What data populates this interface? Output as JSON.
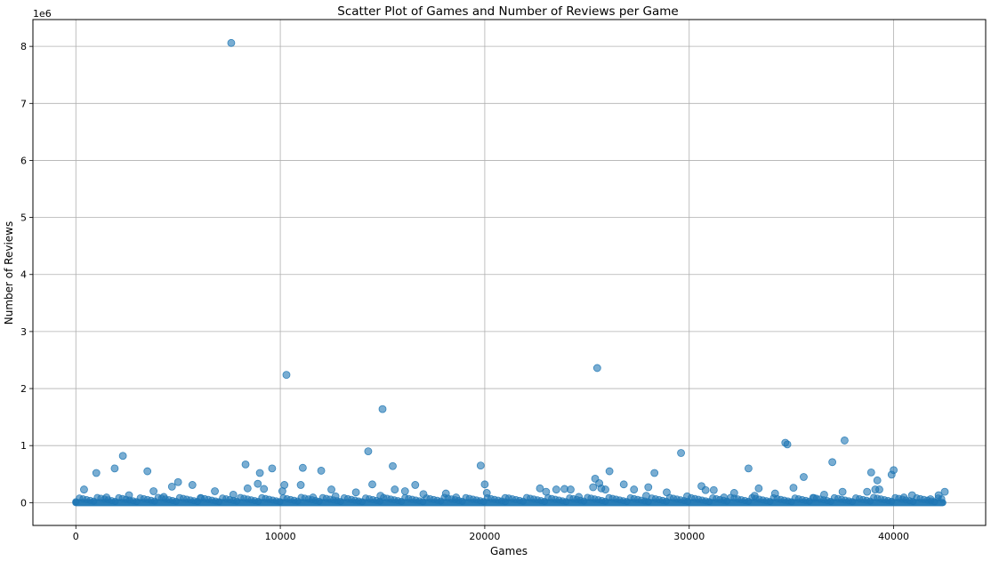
{
  "chart_data": {
    "type": "scatter",
    "title": "Scatter Plot of Games and Number of Reviews per Game",
    "xlabel": "Games",
    "ylabel": "Number of Reviews",
    "y_offset_label": "1e6",
    "xlim": [
      -2100,
      44500
    ],
    "ylim": [
      -400000,
      8470000
    ],
    "x_ticks": [
      0,
      10000,
      20000,
      30000,
      40000
    ],
    "x_tick_labels": [
      "0",
      "10000",
      "20000",
      "30000",
      "40000"
    ],
    "y_ticks": [
      0,
      1000000,
      2000000,
      3000000,
      4000000,
      5000000,
      6000000,
      7000000,
      8000000
    ],
    "y_tick_labels": [
      "0",
      "1",
      "2",
      "3",
      "4",
      "5",
      "6",
      "7",
      "8"
    ],
    "grid": true,
    "marker_color": "#1f77b4",
    "dense_band": {
      "x_range": [
        0,
        42400
      ],
      "y": 0
    },
    "points": [
      {
        "x": 400,
        "y": 230000
      },
      {
        "x": 1000,
        "y": 520000
      },
      {
        "x": 1900,
        "y": 600000
      },
      {
        "x": 2300,
        "y": 820000
      },
      {
        "x": 2600,
        "y": 130000
      },
      {
        "x": 3500,
        "y": 550000
      },
      {
        "x": 3800,
        "y": 200000
      },
      {
        "x": 4700,
        "y": 280000
      },
      {
        "x": 5000,
        "y": 360000
      },
      {
        "x": 5700,
        "y": 310000
      },
      {
        "x": 6800,
        "y": 200000
      },
      {
        "x": 7600,
        "y": 8060000
      },
      {
        "x": 8300,
        "y": 670000
      },
      {
        "x": 8400,
        "y": 250000
      },
      {
        "x": 8900,
        "y": 330000
      },
      {
        "x": 9000,
        "y": 520000
      },
      {
        "x": 9200,
        "y": 240000
      },
      {
        "x": 9600,
        "y": 600000
      },
      {
        "x": 10100,
        "y": 200000
      },
      {
        "x": 10200,
        "y": 310000
      },
      {
        "x": 10300,
        "y": 2240000
      },
      {
        "x": 11000,
        "y": 310000
      },
      {
        "x": 11100,
        "y": 610000
      },
      {
        "x": 12000,
        "y": 560000
      },
      {
        "x": 12500,
        "y": 230000
      },
      {
        "x": 13700,
        "y": 180000
      },
      {
        "x": 14300,
        "y": 900000
      },
      {
        "x": 14500,
        "y": 320000
      },
      {
        "x": 15000,
        "y": 1640000
      },
      {
        "x": 15500,
        "y": 640000
      },
      {
        "x": 15600,
        "y": 230000
      },
      {
        "x": 16100,
        "y": 200000
      },
      {
        "x": 16600,
        "y": 310000
      },
      {
        "x": 18100,
        "y": 160000
      },
      {
        "x": 19800,
        "y": 650000
      },
      {
        "x": 20000,
        "y": 320000
      },
      {
        "x": 20100,
        "y": 170000
      },
      {
        "x": 22700,
        "y": 250000
      },
      {
        "x": 23000,
        "y": 190000
      },
      {
        "x": 23500,
        "y": 230000
      },
      {
        "x": 23900,
        "y": 240000
      },
      {
        "x": 24200,
        "y": 230000
      },
      {
        "x": 25300,
        "y": 270000
      },
      {
        "x": 25400,
        "y": 420000
      },
      {
        "x": 25500,
        "y": 2360000
      },
      {
        "x": 25600,
        "y": 340000
      },
      {
        "x": 25700,
        "y": 250000
      },
      {
        "x": 25900,
        "y": 230000
      },
      {
        "x": 26100,
        "y": 550000
      },
      {
        "x": 26800,
        "y": 320000
      },
      {
        "x": 27300,
        "y": 230000
      },
      {
        "x": 28000,
        "y": 270000
      },
      {
        "x": 28300,
        "y": 520000
      },
      {
        "x": 28900,
        "y": 180000
      },
      {
        "x": 29600,
        "y": 870000
      },
      {
        "x": 30600,
        "y": 290000
      },
      {
        "x": 30800,
        "y": 220000
      },
      {
        "x": 31200,
        "y": 220000
      },
      {
        "x": 32200,
        "y": 170000
      },
      {
        "x": 32900,
        "y": 600000
      },
      {
        "x": 33400,
        "y": 250000
      },
      {
        "x": 34200,
        "y": 160000
      },
      {
        "x": 34700,
        "y": 1050000
      },
      {
        "x": 34800,
        "y": 1020000
      },
      {
        "x": 35100,
        "y": 260000
      },
      {
        "x": 35600,
        "y": 450000
      },
      {
        "x": 36600,
        "y": 140000
      },
      {
        "x": 37000,
        "y": 710000
      },
      {
        "x": 37500,
        "y": 190000
      },
      {
        "x": 37600,
        "y": 1090000
      },
      {
        "x": 38700,
        "y": 190000
      },
      {
        "x": 38900,
        "y": 530000
      },
      {
        "x": 39100,
        "y": 230000
      },
      {
        "x": 39200,
        "y": 390000
      },
      {
        "x": 39300,
        "y": 230000
      },
      {
        "x": 39900,
        "y": 490000
      },
      {
        "x": 40000,
        "y": 570000
      },
      {
        "x": 40900,
        "y": 130000
      },
      {
        "x": 42200,
        "y": 130000
      },
      {
        "x": 42500,
        "y": 190000
      },
      {
        "x": 1500,
        "y": 90000
      },
      {
        "x": 4300,
        "y": 100000
      },
      {
        "x": 6100,
        "y": 80000
      },
      {
        "x": 7700,
        "y": 140000
      },
      {
        "x": 11600,
        "y": 90000
      },
      {
        "x": 12700,
        "y": 110000
      },
      {
        "x": 14900,
        "y": 120000
      },
      {
        "x": 17000,
        "y": 150000
      },
      {
        "x": 18600,
        "y": 90000
      },
      {
        "x": 21000,
        "y": 80000
      },
      {
        "x": 24600,
        "y": 100000
      },
      {
        "x": 27900,
        "y": 120000
      },
      {
        "x": 29900,
        "y": 110000
      },
      {
        "x": 31700,
        "y": 90000
      },
      {
        "x": 33200,
        "y": 120000
      },
      {
        "x": 36100,
        "y": 80000
      },
      {
        "x": 40500,
        "y": 90000
      },
      {
        "x": 41800,
        "y": 60000
      }
    ]
  }
}
